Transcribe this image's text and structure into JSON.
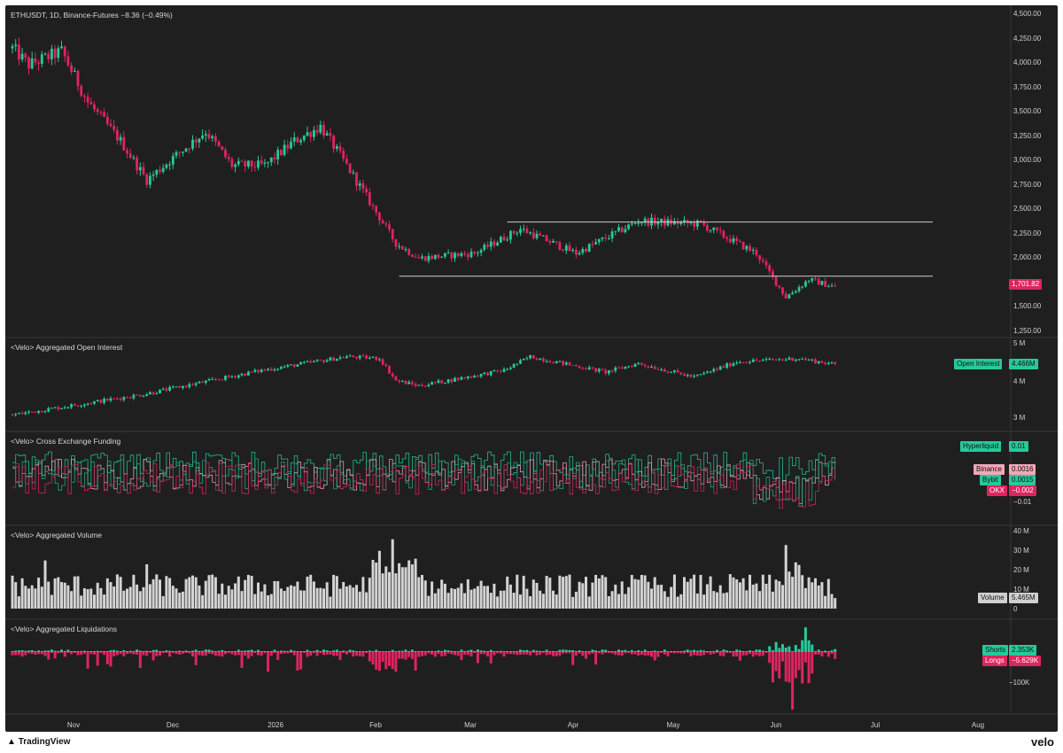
{
  "header": {
    "symbol": "ETHUSDT, 1D, Binance-Futures",
    "change": "−8.36 (−0.49%)"
  },
  "colors": {
    "background": "#1f1f1f",
    "up": "#26c99a",
    "down": "#e0245e",
    "neutral": "#d0d0d0",
    "grid_divider": "#3a3a3a"
  },
  "panes": {
    "price": {
      "y_ticks": [
        "4,500.00",
        "4,250.00",
        "4,000.00",
        "3,750.00",
        "3,500.00",
        "3,250.00",
        "3,000.00",
        "2,750.00",
        "2,500.00",
        "2,250.00",
        "2,000.00",
        "1,750.00",
        "1,500.00",
        "1,250.00"
      ],
      "last_price_label": "1,701.82"
    },
    "open_interest": {
      "title": "<Velo> Aggregated Open Interest",
      "y_ticks": [
        "5 M",
        "4 M",
        "3 M"
      ],
      "label_name": "Open Interest",
      "label_value": "4.466M"
    },
    "funding": {
      "title": "<Velo> Cross Exchange Funding",
      "y_ticks": [
        "−0.01"
      ],
      "labels": [
        {
          "name": "Hyperliquid",
          "value": "0.01"
        },
        {
          "name": "Binance",
          "value": "0.0016"
        },
        {
          "name": "Bybit",
          "value": "0.0015"
        },
        {
          "name": "OKX",
          "value": "−0.002"
        }
      ]
    },
    "volume": {
      "title": "<Velo> Aggregated Volume",
      "y_ticks": [
        "40 M",
        "30 M",
        "20 M",
        "10 M",
        "0"
      ],
      "label_name": "Volume",
      "label_value": "5.465M"
    },
    "liquidations": {
      "title": "<Velo> Aggregated Liquidations",
      "y_ticks": [
        "−100K"
      ],
      "shorts_name": "Shorts",
      "shorts_value": "2.353K",
      "longs_name": "Longs",
      "longs_value": "−5.629K"
    }
  },
  "x_axis": {
    "labels": [
      "Nov",
      "Dec",
      "2026",
      "Feb",
      "Mar",
      "Apr",
      "May",
      "Jun",
      "Jul",
      "Aug"
    ]
  },
  "footer": {
    "platform": "TradingView",
    "brand": "velo"
  },
  "chart_data": [
    {
      "type": "candlestick",
      "title": "ETHUSDT, 1D, Binance-Futures",
      "ylim": [
        1250,
        4500
      ],
      "anchors": [
        {
          "x": "Oct 11",
          "y": 4150
        },
        {
          "x": "Oct 16",
          "y": 3980
        },
        {
          "x": "Oct 26",
          "y": 4120
        },
        {
          "x": "Nov 3",
          "y": 3600
        },
        {
          "x": "Nov 13",
          "y": 3200
        },
        {
          "x": "Nov 21",
          "y": 2800
        },
        {
          "x": "Nov 28",
          "y": 3000
        },
        {
          "x": "Dec 9",
          "y": 3300
        },
        {
          "x": "Dec 17",
          "y": 2950
        },
        {
          "x": "Dec 27",
          "y": 2950
        },
        {
          "x": "Jan 5",
          "y": 3200
        },
        {
          "x": "Jan 13",
          "y": 3350
        },
        {
          "x": "Jan 21",
          "y": 2950
        },
        {
          "x": "Feb 5",
          "y": 2150
        },
        {
          "x": "Feb 12",
          "y": 2000
        },
        {
          "x": "Mar 1",
          "y": 2050
        },
        {
          "x": "Mar 15",
          "y": 2300
        },
        {
          "x": "Apr 1",
          "y": 2050
        },
        {
          "x": "Apr 20",
          "y": 2380
        },
        {
          "x": "May 9",
          "y": 2350
        },
        {
          "x": "May 26",
          "y": 2050
        },
        {
          "x": "Jun 4",
          "y": 1600
        },
        {
          "x": "Jun 11",
          "y": 1780
        },
        {
          "x": "Jun 19",
          "y": 1702
        }
      ],
      "horizontal_lines": [
        {
          "y": 2370,
          "from": "Mar 11",
          "to": "Jul 31"
        },
        {
          "y": 1815,
          "from": "Feb 6",
          "to": "Jul 31"
        }
      ]
    },
    {
      "type": "candlestick",
      "title": "<Velo> Aggregated Open Interest",
      "ylim": [
        2800000,
        5000000
      ],
      "anchors": [
        {
          "x": "Oct 11",
          "y": 3000000
        },
        {
          "x": "Nov 20",
          "y": 3600000
        },
        {
          "x": "Dec 26",
          "y": 4300000
        },
        {
          "x": "Jan 21",
          "y": 4700000
        },
        {
          "x": "Jan 31",
          "y": 4650000
        },
        {
          "x": "Feb 5",
          "y": 4000000
        },
        {
          "x": "Feb 12",
          "y": 3850000
        },
        {
          "x": "Mar 10",
          "y": 4300000
        },
        {
          "x": "Mar 18",
          "y": 4700000
        },
        {
          "x": "Apr 10",
          "y": 4250000
        },
        {
          "x": "Apr 20",
          "y": 4500000
        },
        {
          "x": "May 7",
          "y": 4100000
        },
        {
          "x": "May 20",
          "y": 4550000
        },
        {
          "x": "Jun 8",
          "y": 4650000
        },
        {
          "x": "Jun 19",
          "y": 4466000
        }
      ]
    },
    {
      "type": "line",
      "title": "<Velo> Cross Exchange Funding",
      "series": [
        {
          "name": "Hyperliquid",
          "last": 0.01
        },
        {
          "name": "Binance",
          "last": 0.0016
        },
        {
          "name": "Bybit",
          "last": 0.0015
        },
        {
          "name": "OKX",
          "last": -0.002
        }
      ]
    },
    {
      "type": "bar",
      "title": "<Velo> Aggregated Volume",
      "ylim": [
        0,
        40000000
      ],
      "peaks": [
        {
          "x": "Oct 21",
          "y": 25000000
        },
        {
          "x": "Nov 21",
          "y": 23000000
        },
        {
          "x": "Jan 31",
          "y": 30000000
        },
        {
          "x": "Feb 4",
          "y": 36000000
        },
        {
          "x": "Jun 4",
          "y": 33000000
        }
      ],
      "last": 5465000
    },
    {
      "type": "bar",
      "title": "<Velo> Aggregated Liquidations",
      "series": [
        {
          "name": "Shorts",
          "last": 2353
        },
        {
          "name": "Longs",
          "last": -5629
        }
      ],
      "extremes": [
        {
          "x": "Jun 6",
          "y": -140000
        },
        {
          "x": "Jun 10",
          "y": 60000
        }
      ]
    }
  ]
}
